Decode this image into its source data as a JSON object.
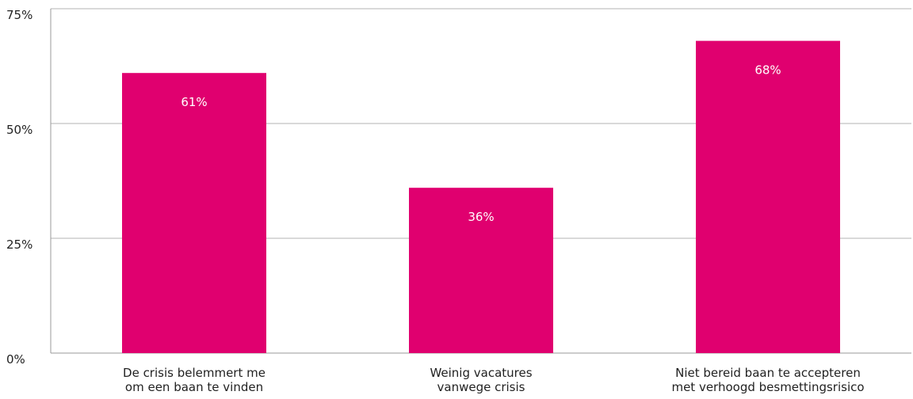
{
  "chart_data": {
    "type": "bar",
    "categories": [
      [
        "De crisis belemmert me",
        "om een baan te vinden"
      ],
      [
        "Weinig vacatures",
        "vanwege crisis"
      ],
      [
        "Niet bereid baan te accepteren",
        "met verhoogd besmettingsrisico"
      ]
    ],
    "values": [
      61,
      36,
      68
    ],
    "data_labels": [
      "61%",
      "36%",
      "68%"
    ],
    "ylim": [
      0,
      75
    ],
    "yticks": [
      0,
      25,
      50,
      75
    ],
    "ytick_labels": [
      "0%",
      "25%",
      "50%",
      "75%"
    ],
    "grid": true,
    "legend": "none",
    "title": "",
    "xlabel": "",
    "ylabel": "",
    "colors": {
      "bar": "#e0006f",
      "grid": "#b3b3b3",
      "axis": "#999999",
      "text": "#222222",
      "data_label": "#ffffff"
    }
  }
}
